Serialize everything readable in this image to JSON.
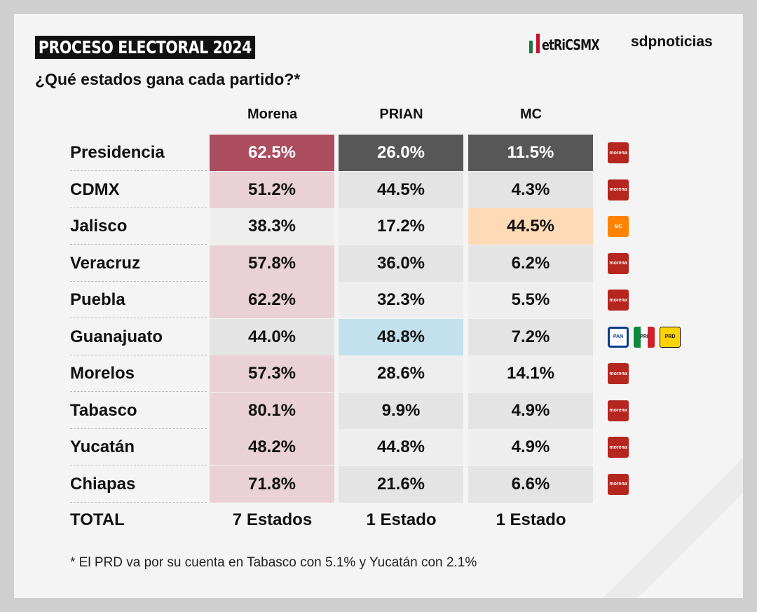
{
  "header": {
    "title": "PROCESO ELECTORAL 2024",
    "subtitle": "¿Qué estados gana cada partido?*",
    "logo_metrics": "etRiCSMX",
    "logo_sdp": "sdpnoticias"
  },
  "columns": [
    "Morena",
    "PRIAN",
    "MC"
  ],
  "colors": {
    "morena_win": "#e9d1d5",
    "prian_win": "#c3e1ec",
    "mc_win": "#fedab7",
    "presidencia_morena": "#ab4d5f",
    "presidencia_other": "#575757"
  },
  "rows": [
    {
      "label": "Presidencia",
      "values": [
        "62.5%",
        "26.0%",
        "11.5%"
      ],
      "winner": 0,
      "icons": [
        "morena"
      ]
    },
    {
      "label": "CDMX",
      "values": [
        "51.2%",
        "44.5%",
        "4.3%"
      ],
      "winner": 0,
      "icons": [
        "morena"
      ]
    },
    {
      "label": "Jalisco",
      "values": [
        "38.3%",
        "17.2%",
        "44.5%"
      ],
      "winner": 2,
      "icons": [
        "mc"
      ]
    },
    {
      "label": "Veracruz",
      "values": [
        "57.8%",
        "36.0%",
        "6.2%"
      ],
      "winner": 0,
      "icons": [
        "morena"
      ]
    },
    {
      "label": "Puebla",
      "values": [
        "62.2%",
        "32.3%",
        "5.5%"
      ],
      "winner": 0,
      "icons": [
        "morena"
      ]
    },
    {
      "label": "Guanajuato",
      "values": [
        "44.0%",
        "48.8%",
        "7.2%"
      ],
      "winner": 1,
      "icons": [
        "pan",
        "pri",
        "prd"
      ]
    },
    {
      "label": "Morelos",
      "values": [
        "57.3%",
        "28.6%",
        "14.1%"
      ],
      "winner": 0,
      "icons": [
        "morena"
      ]
    },
    {
      "label": "Tabasco",
      "values": [
        "80.1%",
        "9.9%",
        "4.9%"
      ],
      "winner": 0,
      "icons": [
        "morena"
      ]
    },
    {
      "label": "Yucatán",
      "values": [
        "48.2%",
        "44.8%",
        "4.9%"
      ],
      "winner": 0,
      "icons": [
        "morena"
      ]
    },
    {
      "label": "Chiapas",
      "values": [
        "71.8%",
        "21.6%",
        "6.6%"
      ],
      "winner": 0,
      "icons": [
        "morena"
      ]
    }
  ],
  "icon_text": {
    "morena": "morena",
    "mc": "MC",
    "pan": "PAN",
    "pri": "PRI",
    "prd": "PRD"
  },
  "total": {
    "label": "TOTAL",
    "values": [
      "7 Estados",
      "1 Estado",
      "1 Estado"
    ]
  },
  "footnote": "* El PRD va por su cuenta en Tabasco con 5.1% y Yucatán con 2.1%"
}
